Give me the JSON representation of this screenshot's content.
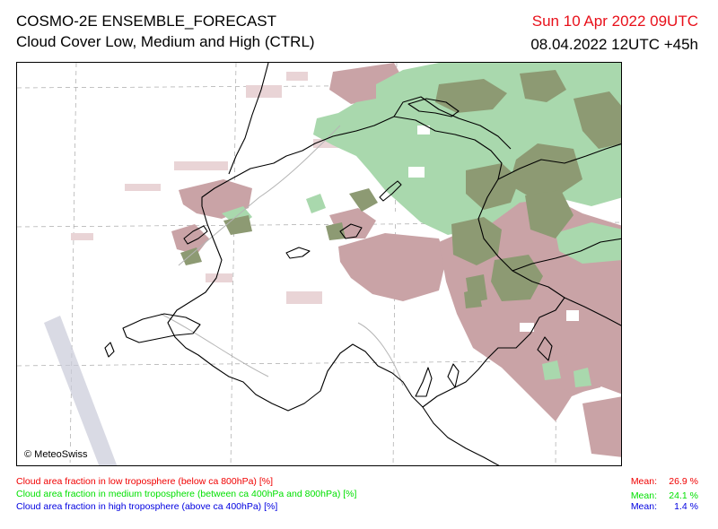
{
  "header": {
    "title": "COSMO-2E ENSEMBLE_FORECAST",
    "subtitle": "Cloud Cover Low, Medium and High (CTRL)",
    "valid_time": "Sun 10 Apr 2022 09UTC",
    "run_time": "08.04.2022 12UTC +45h"
  },
  "colors": {
    "valid_time": "#e8101a",
    "low": "#f00000",
    "medium": "#00e000",
    "high": "#0000e0",
    "low_fill": "#c9a3a6",
    "medium_fill": "#a9d8ad",
    "overlap_fill": "#8d9a73"
  },
  "map": {
    "copyright": "© MeteoSwiss"
  },
  "legend": [
    {
      "label": "Cloud area fraction in low troposphere (below ca 800hPa) [%]",
      "mean_label": "Mean:",
      "mean_value": "26.9 %",
      "mean_number": 26.9,
      "color_key": "low"
    },
    {
      "label": "Cloud area fraction in medium troposphere (between ca 400hPa and 800hPa) [%]",
      "mean_label": "Mean:",
      "mean_value": "24.1 %",
      "mean_number": 24.1,
      "color_key": "medium"
    },
    {
      "label": "Cloud area fraction in high troposphere (above ca 400hPa) [%]",
      "mean_label": "Mean:",
      "mean_value": "1.4 %",
      "mean_number": 1.4,
      "color_key": "high"
    }
  ]
}
